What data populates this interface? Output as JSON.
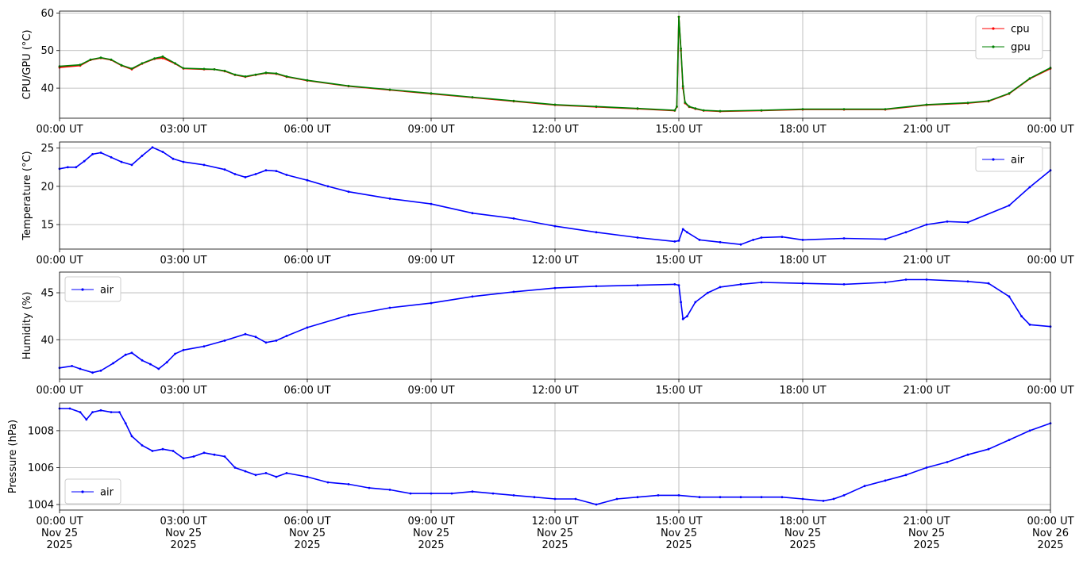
{
  "colors": {
    "cpu": "#ff0000",
    "gpu": "#008000",
    "air": "#0000ff",
    "grid": "#b0b0b0"
  },
  "chart_data": [
    {
      "type": "line",
      "ylabel": "CPU/GPU (°C)",
      "ylim": [
        32,
        60.5
      ],
      "yticks": [
        40,
        50,
        60
      ],
      "grid": true,
      "legend_position": "top-right",
      "xlim_hours": [
        0,
        24
      ],
      "xtick_labels": [
        "00:00 UT",
        "03:00 UT",
        "06:00 UT",
        "09:00 UT",
        "12:00 UT",
        "15:00 UT",
        "18:00 UT",
        "21:00 UT",
        "00:00 UT"
      ],
      "x": [
        0,
        0.5,
        0.75,
        1.0,
        1.25,
        1.5,
        1.75,
        2.0,
        2.3,
        2.5,
        2.8,
        3.0,
        3.5,
        3.75,
        4.0,
        4.25,
        4.5,
        4.75,
        5.0,
        5.25,
        5.5,
        6.0,
        7.0,
        8.0,
        9.0,
        10.0,
        11.0,
        12.0,
        13.0,
        14.0,
        14.9,
        14.95,
        15.0,
        15.05,
        15.1,
        15.15,
        15.25,
        15.4,
        15.6,
        16.0,
        17.0,
        18.0,
        19.0,
        20.0,
        21.0,
        22.0,
        22.5,
        23.0,
        23.5,
        24.0
      ],
      "series": [
        {
          "name": "cpu",
          "values": [
            45.5,
            46.0,
            47.5,
            48.0,
            47.5,
            46.0,
            45.0,
            46.5,
            47.8,
            48.0,
            46.5,
            45.2,
            45.0,
            45.0,
            44.5,
            43.5,
            43.0,
            43.5,
            44.0,
            43.8,
            43.0,
            42.0,
            40.5,
            39.5,
            38.5,
            37.5,
            36.5,
            35.5,
            35.0,
            34.5,
            34.0,
            35.0,
            59.0,
            50.0,
            40.0,
            36.0,
            35.0,
            34.5,
            34.0,
            33.8,
            34.0,
            34.3,
            34.3,
            34.3,
            35.5,
            36.0,
            36.5,
            38.5,
            42.5,
            45.2
          ]
        },
        {
          "name": "gpu",
          "values": [
            45.8,
            46.2,
            47.6,
            48.1,
            47.6,
            46.1,
            45.2,
            46.6,
            47.9,
            48.4,
            46.6,
            45.3,
            45.1,
            45.0,
            44.6,
            43.6,
            43.1,
            43.6,
            44.1,
            43.9,
            43.1,
            42.1,
            40.6,
            39.6,
            38.6,
            37.6,
            36.6,
            35.6,
            35.1,
            34.6,
            34.1,
            35.1,
            59.0,
            50.5,
            40.5,
            36.2,
            35.1,
            34.6,
            34.1,
            33.9,
            34.1,
            34.4,
            34.4,
            34.4,
            35.6,
            36.1,
            36.6,
            38.6,
            42.6,
            45.4
          ]
        }
      ]
    },
    {
      "type": "line",
      "ylabel": "Temperature (°C)",
      "ylim": [
        11.8,
        25.8
      ],
      "yticks": [
        15,
        20,
        25
      ],
      "grid": true,
      "legend_position": "top-right",
      "xlim_hours": [
        0,
        24
      ],
      "xtick_labels": [
        "00:00 UT",
        "03:00 UT",
        "06:00 UT",
        "09:00 UT",
        "12:00 UT",
        "15:00 UT",
        "18:00 UT",
        "21:00 UT",
        "00:00 UT"
      ],
      "x": [
        0,
        0.2,
        0.4,
        0.6,
        0.8,
        1.0,
        1.25,
        1.5,
        1.75,
        2.0,
        2.25,
        2.5,
        2.75,
        3.0,
        3.5,
        4.0,
        4.25,
        4.5,
        4.75,
        5.0,
        5.25,
        5.5,
        6.0,
        6.5,
        7.0,
        8.0,
        9.0,
        10.0,
        11.0,
        12.0,
        13.0,
        14.0,
        14.9,
        15.0,
        15.1,
        15.2,
        15.5,
        16.0,
        16.5,
        16.8,
        17.0,
        17.5,
        18.0,
        19.0,
        20.0,
        20.5,
        21.0,
        21.5,
        22.0,
        23.0,
        23.5,
        24.0
      ],
      "series": [
        {
          "name": "air",
          "values": [
            22.3,
            22.5,
            22.5,
            23.3,
            24.2,
            24.4,
            23.8,
            23.2,
            22.8,
            24.0,
            25.1,
            24.5,
            23.6,
            23.2,
            22.8,
            22.2,
            21.6,
            21.2,
            21.6,
            22.1,
            22.0,
            21.5,
            20.8,
            20.0,
            19.3,
            18.4,
            17.7,
            16.5,
            15.8,
            14.8,
            14.0,
            13.3,
            12.8,
            12.9,
            14.4,
            14.0,
            13.0,
            12.7,
            12.4,
            13.0,
            13.3,
            13.4,
            13.0,
            13.2,
            13.1,
            14.0,
            15.0,
            15.4,
            15.3,
            17.5,
            19.9,
            22.1
          ]
        }
      ]
    },
    {
      "type": "line",
      "ylabel": "Humidity (%)",
      "ylim": [
        35.8,
        47.2
      ],
      "yticks": [
        40,
        45
      ],
      "grid": true,
      "legend_position": "top-left",
      "xlim_hours": [
        0,
        24
      ],
      "xtick_labels": [
        "00:00 UT",
        "03:00 UT",
        "06:00 UT",
        "09:00 UT",
        "12:00 UT",
        "15:00 UT",
        "18:00 UT",
        "21:00 UT",
        "00:00 UT"
      ],
      "x": [
        0,
        0.3,
        0.5,
        0.8,
        1.0,
        1.3,
        1.6,
        1.75,
        2.0,
        2.2,
        2.4,
        2.6,
        2.8,
        3.0,
        3.5,
        4.0,
        4.5,
        4.75,
        5.0,
        5.25,
        5.5,
        6.0,
        7.0,
        8.0,
        9.0,
        10.0,
        11.0,
        12.0,
        13.0,
        14.0,
        14.9,
        15.0,
        15.05,
        15.1,
        15.2,
        15.4,
        15.7,
        16.0,
        16.5,
        17.0,
        18.0,
        19.0,
        20.0,
        20.5,
        21.0,
        22.0,
        22.5,
        23.0,
        23.3,
        23.5,
        24.0
      ],
      "series": [
        {
          "name": "air",
          "values": [
            37.0,
            37.2,
            36.9,
            36.5,
            36.7,
            37.5,
            38.4,
            38.6,
            37.8,
            37.4,
            36.9,
            37.6,
            38.5,
            38.9,
            39.3,
            39.9,
            40.6,
            40.3,
            39.7,
            39.9,
            40.4,
            41.3,
            42.6,
            43.4,
            43.9,
            44.6,
            45.1,
            45.5,
            45.7,
            45.8,
            45.9,
            45.8,
            44.0,
            42.2,
            42.5,
            44.0,
            45.0,
            45.6,
            45.9,
            46.1,
            46.0,
            45.9,
            46.1,
            46.4,
            46.4,
            46.2,
            46.0,
            44.6,
            42.5,
            41.6,
            41.4
          ]
        }
      ]
    },
    {
      "type": "line",
      "ylabel": "Pressure (hPa)",
      "ylim": [
        1003.7,
        1009.5
      ],
      "yticks": [
        1004,
        1006,
        1008
      ],
      "grid": true,
      "legend_position": "bottom-left",
      "xlim_hours": [
        0,
        24
      ],
      "xtick_labels": [
        "00:00 UT\nNov 25\n2025",
        "03:00 UT\nNov 25\n2025",
        "06:00 UT\nNov 25\n2025",
        "09:00 UT\nNov 25\n2025",
        "12:00 UT\nNov 25\n2025",
        "15:00 UT\nNov 25\n2025",
        "18:00 UT\nNov 25\n2025",
        "21:00 UT\nNov 25\n2025",
        "00:00 UT\nNov 26\n2025"
      ],
      "x": [
        0,
        0.25,
        0.5,
        0.65,
        0.8,
        1.0,
        1.25,
        1.45,
        1.6,
        1.75,
        2.0,
        2.25,
        2.5,
        2.75,
        3.0,
        3.25,
        3.5,
        3.75,
        4.0,
        4.25,
        4.5,
        4.75,
        5.0,
        5.25,
        5.5,
        6.0,
        6.5,
        7.0,
        7.5,
        8.0,
        8.5,
        9.0,
        9.5,
        10.0,
        10.5,
        11.0,
        11.5,
        12.0,
        12.5,
        13.0,
        13.5,
        14.0,
        14.5,
        15.0,
        15.5,
        16.0,
        16.5,
        17.0,
        17.5,
        18.0,
        18.5,
        18.75,
        19.0,
        19.5,
        20.0,
        20.5,
        21.0,
        21.5,
        22.0,
        22.5,
        23.0,
        23.5,
        24.0
      ],
      "series": [
        {
          "name": "air",
          "values": [
            1009.2,
            1009.2,
            1009.0,
            1008.6,
            1009.0,
            1009.1,
            1009.0,
            1009.0,
            1008.4,
            1007.7,
            1007.2,
            1006.9,
            1007.0,
            1006.9,
            1006.5,
            1006.6,
            1006.8,
            1006.7,
            1006.6,
            1006.0,
            1005.8,
            1005.6,
            1005.7,
            1005.5,
            1005.7,
            1005.5,
            1005.2,
            1005.1,
            1004.9,
            1004.8,
            1004.6,
            1004.6,
            1004.6,
            1004.7,
            1004.6,
            1004.5,
            1004.4,
            1004.3,
            1004.3,
            1004.0,
            1004.3,
            1004.4,
            1004.5,
            1004.5,
            1004.4,
            1004.4,
            1004.4,
            1004.4,
            1004.4,
            1004.3,
            1004.2,
            1004.3,
            1004.5,
            1005.0,
            1005.3,
            1005.6,
            1006.0,
            1006.3,
            1006.7,
            1007.0,
            1007.5,
            1008.0,
            1008.4
          ]
        }
      ]
    }
  ]
}
